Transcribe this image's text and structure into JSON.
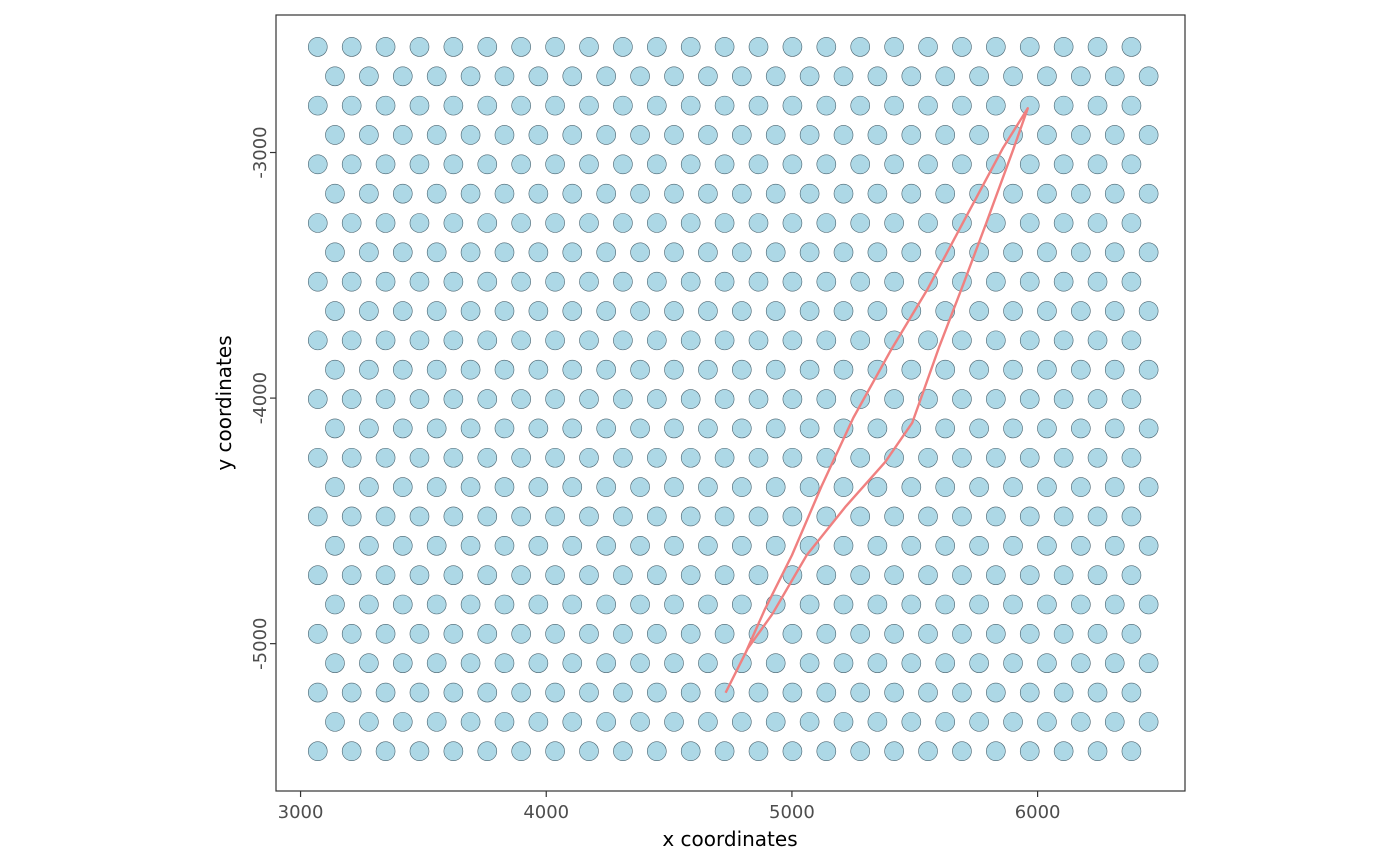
{
  "chart_data": {
    "type": "scatter",
    "title": "",
    "xlabel": "x coordinates",
    "ylabel": "y coordinates",
    "xlim": [
      2900,
      6600
    ],
    "ylim": [
      -5600,
      -2440
    ],
    "x_ticks": [
      3000,
      4000,
      5000,
      6000
    ],
    "y_ticks": [
      -5000,
      -4000,
      -3000
    ],
    "x_tick_labels": [
      "3000",
      "4000",
      "5000",
      "6000"
    ],
    "y_tick_labels": [
      "-5000",
      "-4000",
      "-3000"
    ],
    "grid": false,
    "legend": "none",
    "spot_grid": {
      "description": "hexagonal array of spots",
      "row_y_top": -2570,
      "row_spacing_y": -119.5,
      "row_count": 25,
      "even_row_x_start": 3070,
      "odd_row_x_start": 3140,
      "x_spacing": 138,
      "even_row_count": 25,
      "odd_row_count": 25,
      "missing_points": [
        [
          4095,
          -3890
        ]
      ]
    },
    "spot_fill": "#add8e6",
    "spot_stroke": "#4a6470",
    "series": [
      {
        "type": "line",
        "color": "#f08080",
        "points": [
          [
            4730,
            -5200
          ],
          [
            4810,
            -5040
          ],
          [
            4890,
            -4860
          ],
          [
            5000,
            -4640
          ],
          [
            5120,
            -4360
          ],
          [
            5250,
            -4080
          ],
          [
            5400,
            -3810
          ],
          [
            5550,
            -3560
          ],
          [
            5710,
            -3260
          ],
          [
            5860,
            -2980
          ],
          [
            5960,
            -2820
          ],
          [
            5900,
            -2990
          ],
          [
            5790,
            -3290
          ],
          [
            5700,
            -3530
          ],
          [
            5600,
            -3790
          ],
          [
            5490,
            -4100
          ],
          [
            5380,
            -4260
          ],
          [
            5220,
            -4440
          ],
          [
            5060,
            -4640
          ],
          [
            4920,
            -4880
          ],
          [
            4820,
            -5020
          ],
          [
            4730,
            -5200
          ]
        ]
      }
    ]
  }
}
